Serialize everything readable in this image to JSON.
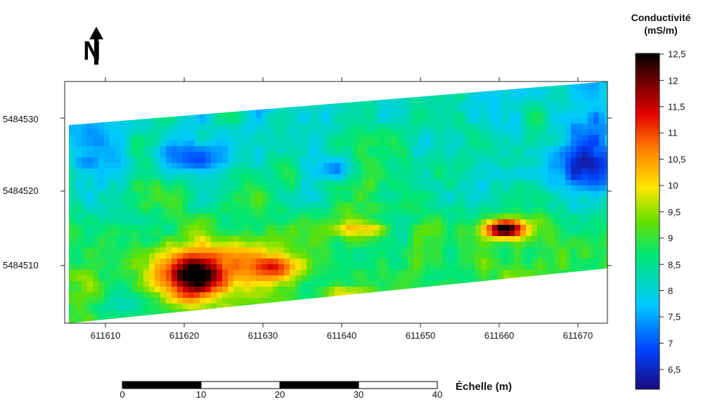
{
  "map": {
    "x_ticks": [
      "611610",
      "611620",
      "611630",
      "611640",
      "611650",
      "611660",
      "611670"
    ],
    "y_ticks": [
      "5484530",
      "5484520",
      "5484510"
    ],
    "x_range": [
      611605,
      611674
    ],
    "y_range": [
      5484501,
      5484535
    ]
  },
  "colorbar": {
    "title_line1": "Conductivité",
    "title_line2": "(mS/m)",
    "ticks": [
      "12,5",
      "12",
      "11,5",
      "11",
      "10,5",
      "10",
      "9,5",
      "9",
      "8,5",
      "8",
      "7,5",
      "7",
      "6,5"
    ],
    "range": [
      6.1,
      12.5
    ],
    "colors": [
      "#1a0a80",
      "#0044ff",
      "#00c8ff",
      "#00e676",
      "#66e000",
      "#ffe600",
      "#ff7a00",
      "#e00000",
      "#7a0000",
      "#000000"
    ]
  },
  "scale": {
    "title": "Échelle (m)",
    "ticks": [
      "0",
      "10",
      "20",
      "30",
      "40"
    ]
  },
  "north_arrow": {
    "letter": "N",
    "icon": "north-arrow-icon"
  }
}
